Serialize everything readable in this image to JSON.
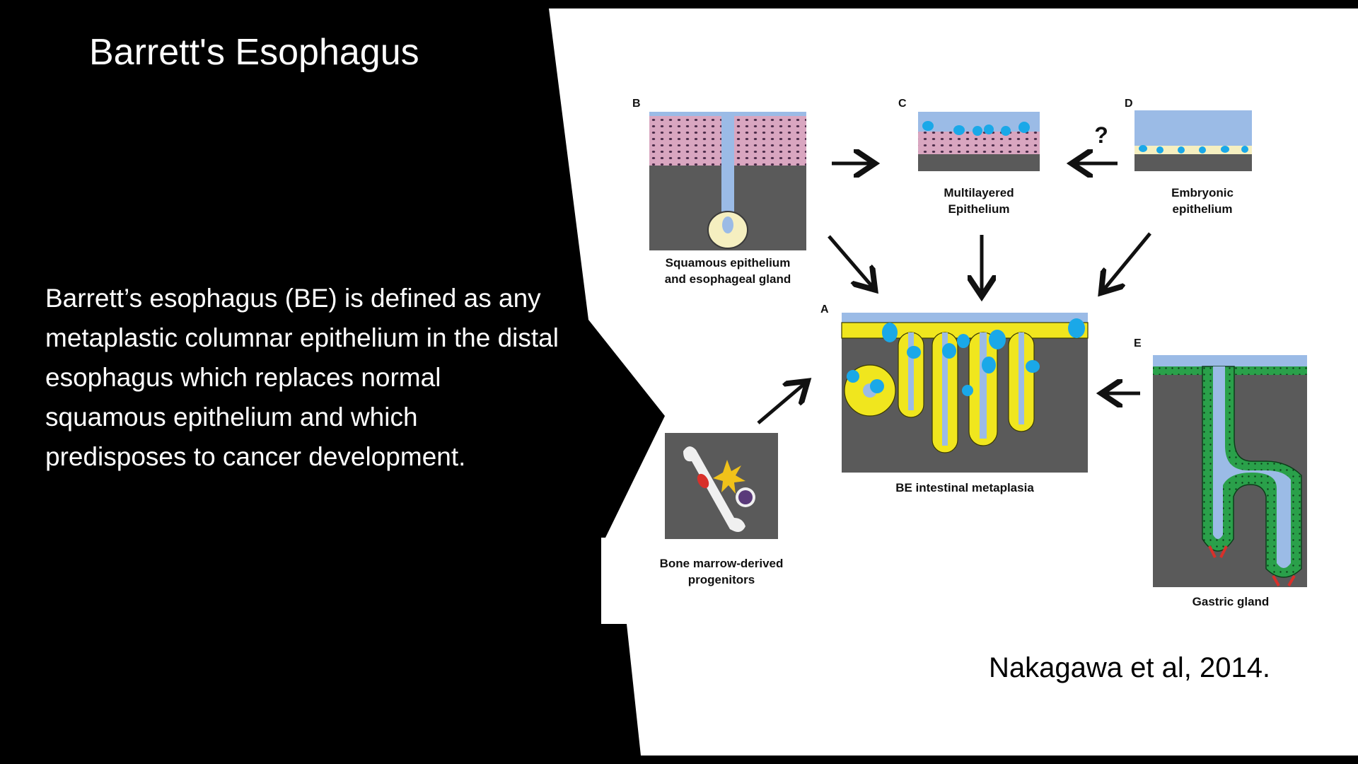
{
  "slide": {
    "title": "Barrett's Esophagus",
    "body": "Barrett’s esophagus (BE) is defined as any metaplastic columnar epithelium in the distal esophagus which replaces normal squamous epithelium and which predisposes to cancer development.",
    "citation": "Nakagawa et al, 2014."
  },
  "figure": {
    "panels": {
      "A": {
        "letter": "A",
        "caption": "BE intestinal metaplasia"
      },
      "B": {
        "letter": "B",
        "caption_line1": "Squamous epithelium",
        "caption_line2": "and esophageal gland"
      },
      "C": {
        "letter": "C",
        "caption_line1": "Multilayered",
        "caption_line2": "Epithelium"
      },
      "D": {
        "letter": "D",
        "caption_line1": "Embryonic",
        "caption_line2": "epithelium"
      },
      "E": {
        "letter": "E",
        "caption": "Gastric gland"
      },
      "bone_marrow": {
        "caption_line1": "Bone marrow-derived",
        "caption_line2": "progenitors"
      }
    },
    "question_mark": "?",
    "colors": {
      "tissue_gray": "#5a5a5a",
      "lumen_blue": "#9bbbe6",
      "goblet_blue": "#1aa8e8",
      "columnar_yellow": "#f0e61e",
      "squamous_pink": "#d9a6c0",
      "gastric_green": "#2aa04a",
      "marker_red": "#d8302a"
    }
  }
}
